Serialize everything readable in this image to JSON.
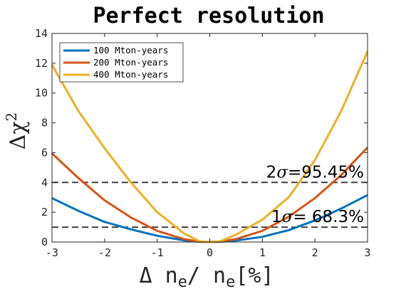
{
  "chart_data": {
    "type": "line",
    "title": "Perfect resolution",
    "xlabel": "Δ n_e/ n_e[%]",
    "ylabel": "Δχ²",
    "xlim": [
      -3,
      3
    ],
    "ylim": [
      0,
      14
    ],
    "xticks": [
      -3,
      -2,
      -1,
      0,
      1,
      2,
      3
    ],
    "yticks": [
      0,
      2,
      4,
      6,
      8,
      10,
      12,
      14
    ],
    "legend_position": "top-left",
    "grid": false,
    "series": [
      {
        "name": "100 Mton-years",
        "color": "#0072BD",
        "x": [
          -3,
          -2.5,
          -2,
          -1.5,
          -1,
          -0.5,
          -0.2,
          0,
          0.2,
          0.5,
          1,
          1.5,
          2,
          2.5,
          3
        ],
        "y": [
          2.95,
          2.1,
          1.35,
          0.85,
          0.42,
          0.12,
          0.02,
          0,
          0.02,
          0.1,
          0.35,
          0.8,
          1.45,
          2.25,
          3.15
        ]
      },
      {
        "name": "200 Mton-years",
        "color": "#D95319",
        "x": [
          -3,
          -2.5,
          -2,
          -1.5,
          -1,
          -0.5,
          -0.2,
          0,
          0.2,
          0.5,
          1,
          1.5,
          2,
          2.5,
          3
        ],
        "y": [
          5.95,
          4.3,
          2.8,
          1.65,
          0.75,
          0.2,
          0.03,
          0,
          0.03,
          0.2,
          0.75,
          1.7,
          2.95,
          4.5,
          6.35
        ]
      },
      {
        "name": "400 Mton-years",
        "color": "#EDB120",
        "x": [
          -3,
          -2.5,
          -2,
          -1.5,
          -1,
          -0.5,
          -0.2,
          0,
          0.2,
          0.5,
          1,
          1.5,
          2,
          2.5,
          3
        ],
        "y": [
          11.9,
          8.8,
          6.3,
          4.0,
          2.0,
          0.6,
          0.05,
          0,
          0.05,
          0.5,
          1.5,
          3.0,
          5.5,
          8.8,
          12.8
        ]
      }
    ],
    "reference_lines": [
      {
        "y": 4,
        "label": "2σ=95.45%",
        "color": "#404040"
      },
      {
        "y": 1,
        "label": "1σ= 68.3%",
        "color": "#404040"
      }
    ]
  }
}
